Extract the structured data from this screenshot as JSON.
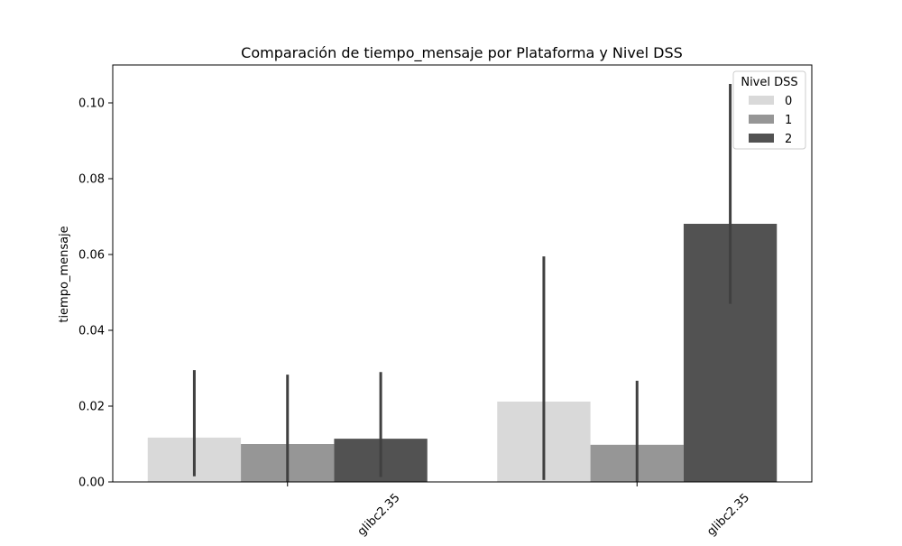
{
  "chart_data": {
    "type": "bar",
    "title": "Comparación de tiempo_mensaje por Plataforma y Nivel DSS",
    "xlabel": "",
    "ylabel": "tiempo_mensaje",
    "categories": [
      "glibc2.35",
      "glibc2.35"
    ],
    "ylim": [
      0,
      0.11
    ],
    "yticks": [
      0.0,
      0.02,
      0.04,
      0.06,
      0.08,
      0.1
    ],
    "ytick_labels": [
      "0.00",
      "0.02",
      "0.04",
      "0.06",
      "0.08",
      "0.10"
    ],
    "grid": false,
    "legend": {
      "title": "Nivel DSS",
      "placement": "top-right"
    },
    "series": [
      {
        "name": "0",
        "color": "#d9d9d9",
        "values": [
          0.0117,
          0.0212
        ],
        "error_low": [
          0.0015,
          0.0005
        ],
        "error_high": [
          0.0295,
          0.0595
        ]
      },
      {
        "name": "1",
        "color": "#969696",
        "values": [
          0.01,
          0.0098
        ],
        "error_low": [
          0.0,
          0.0
        ],
        "error_high": [
          0.0283,
          0.0267
        ]
      },
      {
        "name": "2",
        "color": "#525252",
        "values": [
          0.0114,
          0.0681
        ],
        "error_low": [
          0.0013,
          0.047
        ],
        "error_high": [
          0.029,
          0.105
        ]
      }
    ],
    "errorbar_color": "#404040"
  }
}
